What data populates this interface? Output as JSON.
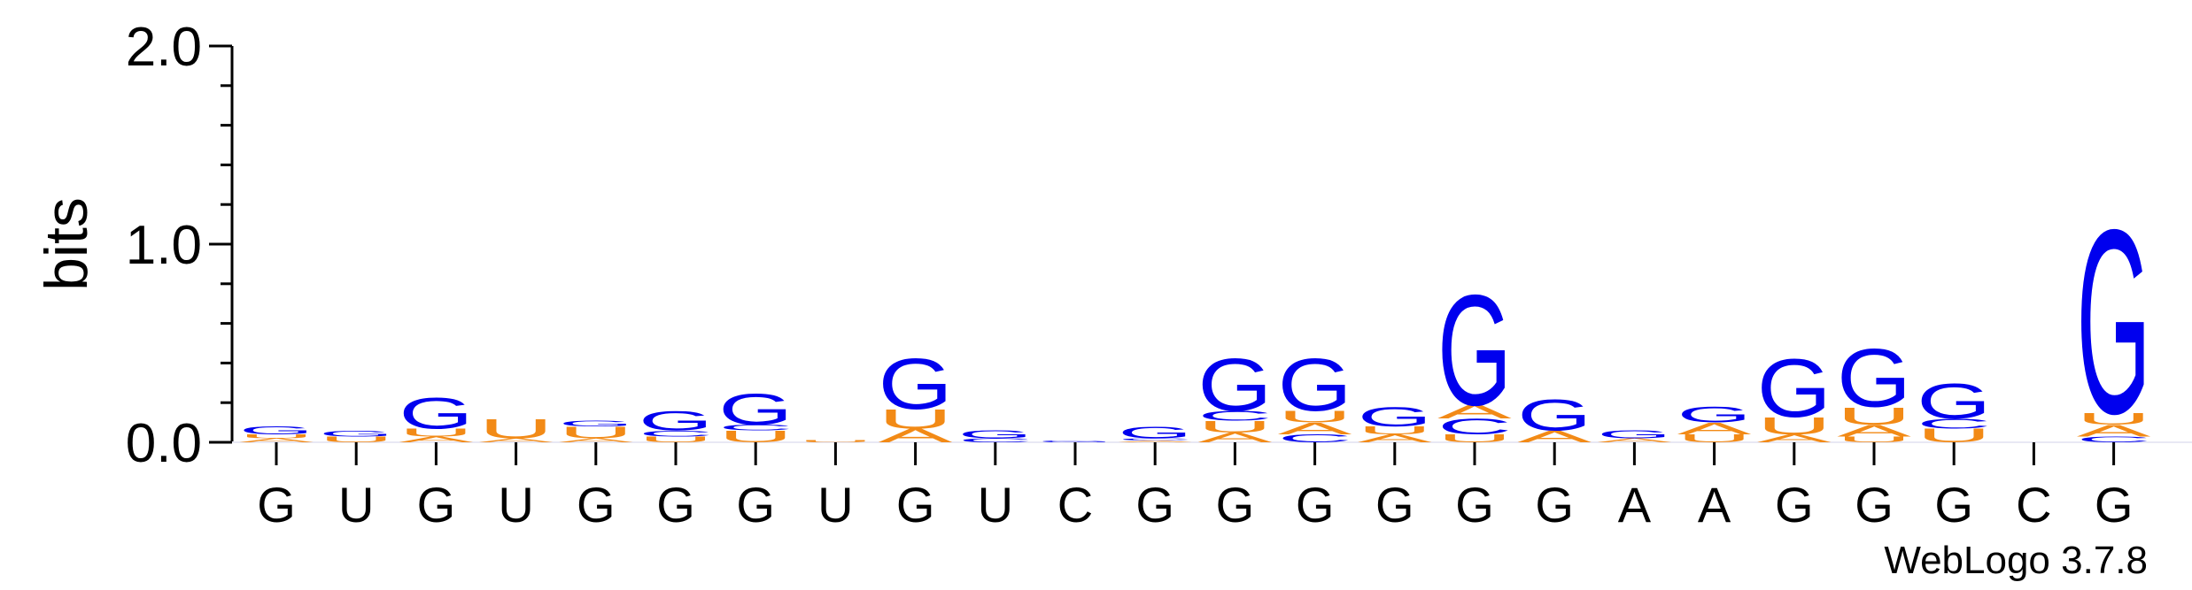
{
  "chart_data": {
    "type": "sequence-logo",
    "ylabel": "bits",
    "ylim": [
      0,
      2.0
    ],
    "yticks": [
      "0.0",
      "1.0",
      "2.0"
    ],
    "positions": [
      "G",
      "U",
      "G",
      "U",
      "G",
      "G",
      "G",
      "U",
      "G",
      "U",
      "C",
      "G",
      "G",
      "G",
      "G",
      "G",
      "G",
      "A",
      "A",
      "G",
      "G",
      "G",
      "C",
      "G"
    ],
    "colors": {
      "G": "#0000ee",
      "C": "#0000ee",
      "A": "#f28a16",
      "U": "#f28a16"
    },
    "stacks": [
      [
        {
          "l": "A",
          "h": 0.02
        },
        {
          "l": "U",
          "h": 0.02
        },
        {
          "l": "G",
          "h": 0.04
        }
      ],
      [
        {
          "l": "U",
          "h": 0.03
        },
        {
          "l": "G",
          "h": 0.03
        }
      ],
      [
        {
          "l": "A",
          "h": 0.03
        },
        {
          "l": "U",
          "h": 0.04
        },
        {
          "l": "G",
          "h": 0.16
        }
      ],
      [
        {
          "l": "A",
          "h": 0.02
        },
        {
          "l": "U",
          "h": 0.1
        }
      ],
      [
        {
          "l": "A",
          "h": 0.02
        },
        {
          "l": "U",
          "h": 0.06
        },
        {
          "l": "G",
          "h": 0.03
        }
      ],
      [
        {
          "l": "U",
          "h": 0.03
        },
        {
          "l": "C",
          "h": 0.03
        },
        {
          "l": "G",
          "h": 0.1
        }
      ],
      [
        {
          "l": "U",
          "h": 0.06
        },
        {
          "l": "C",
          "h": 0.03
        },
        {
          "l": "G",
          "h": 0.16
        }
      ],
      [
        {
          "l": "U",
          "h": 0.01
        }
      ],
      [
        {
          "l": "A",
          "h": 0.07
        },
        {
          "l": "U",
          "h": 0.1
        },
        {
          "l": "G",
          "h": 0.26
        }
      ],
      [
        {
          "l": "C",
          "h": 0.02
        },
        {
          "l": "G",
          "h": 0.04
        }
      ],
      [
        {
          "l": "G",
          "h": 0.01
        }
      ],
      [
        {
          "l": "A",
          "h": 0.01
        },
        {
          "l": "C",
          "h": 0.01
        },
        {
          "l": "G",
          "h": 0.06
        }
      ],
      [
        {
          "l": "A",
          "h": 0.05
        },
        {
          "l": "U",
          "h": 0.06
        },
        {
          "l": "C",
          "h": 0.05
        },
        {
          "l": "G",
          "h": 0.27
        }
      ],
      [
        {
          "l": "C",
          "h": 0.04
        },
        {
          "l": "A",
          "h": 0.06
        },
        {
          "l": "U",
          "h": 0.06
        },
        {
          "l": "G",
          "h": 0.27
        }
      ],
      [
        {
          "l": "A",
          "h": 0.04
        },
        {
          "l": "U",
          "h": 0.04
        },
        {
          "l": "G",
          "h": 0.1
        }
      ],
      [
        {
          "l": "U",
          "h": 0.04
        },
        {
          "l": "C",
          "h": 0.08
        },
        {
          "l": "A",
          "h": 0.07
        },
        {
          "l": "G",
          "h": 0.57
        }
      ],
      [
        {
          "l": "A",
          "h": 0.06
        },
        {
          "l": "G",
          "h": 0.16
        }
      ],
      [
        {
          "l": "A",
          "h": 0.02
        },
        {
          "l": "G",
          "h": 0.04
        }
      ],
      [
        {
          "l": "U",
          "h": 0.04
        },
        {
          "l": "A",
          "h": 0.06
        },
        {
          "l": "G",
          "h": 0.08
        }
      ],
      [
        {
          "l": "A",
          "h": 0.04
        },
        {
          "l": "U",
          "h": 0.09
        },
        {
          "l": "G",
          "h": 0.3
        }
      ],
      [
        {
          "l": "U",
          "h": 0.03
        },
        {
          "l": "A",
          "h": 0.06
        },
        {
          "l": "U",
          "h": 0.09
        },
        {
          "l": "G",
          "h": 0.3
        }
      ],
      [
        {
          "l": "U",
          "h": 0.07
        },
        {
          "l": "C",
          "h": 0.05
        },
        {
          "l": "G",
          "h": 0.18
        }
      ],
      [],
      [
        {
          "l": "C",
          "h": 0.03
        },
        {
          "l": "A",
          "h": 0.06
        },
        {
          "l": "U",
          "h": 0.06
        },
        {
          "l": "G",
          "h": 0.95
        }
      ]
    ],
    "watermark": "WebLogo 3.7.8"
  }
}
